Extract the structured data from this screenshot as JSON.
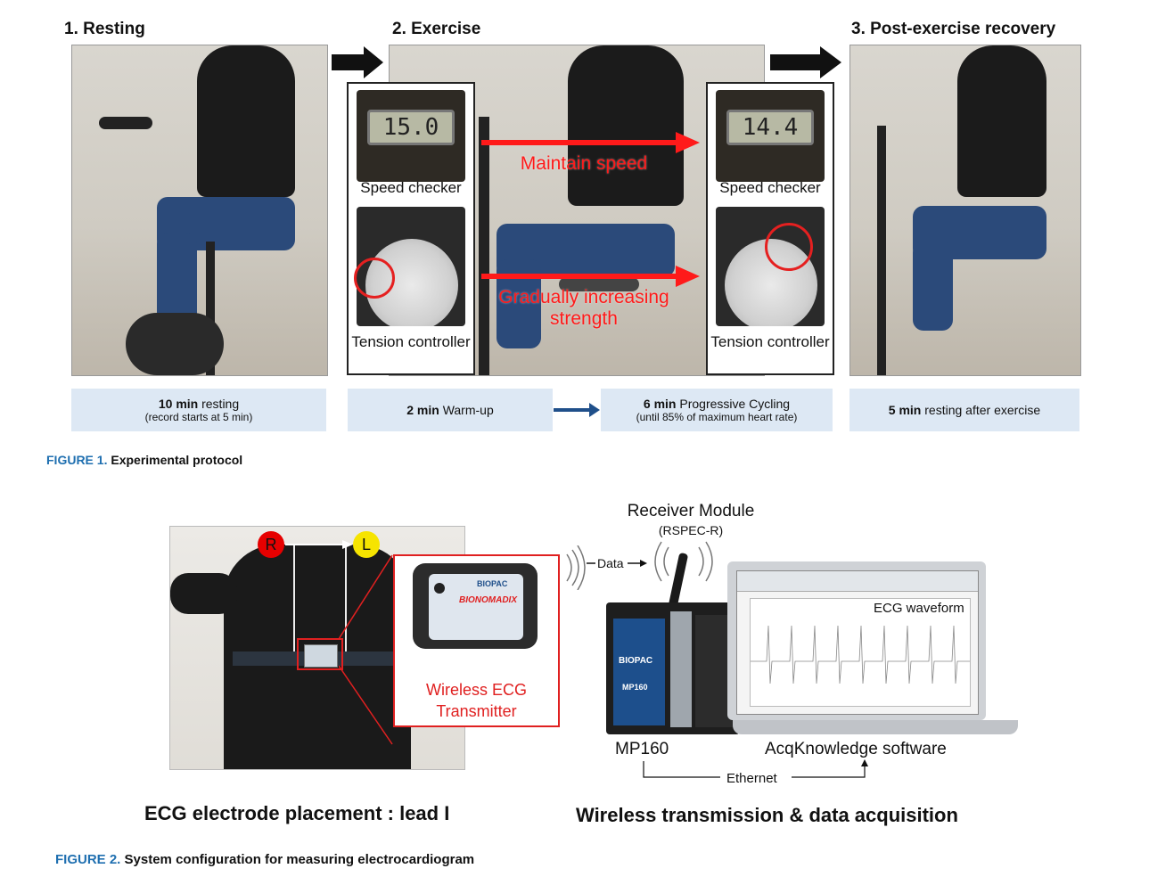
{
  "figure1": {
    "stages": [
      {
        "label": "1. Resting"
      },
      {
        "label": "2. Exercise"
      },
      {
        "label": "3. Post-exercise recovery"
      }
    ],
    "insets": {
      "speed_checker_label": "Speed checker",
      "speed_left_value": "15.0",
      "speed_right_value": "14.4",
      "tension_controller_label": "Tension controller",
      "maintain_speed": "Maintain speed",
      "gradually_increasing": "Gradually increasing strength"
    },
    "steps": [
      {
        "bold": "10 min",
        "rest": " resting",
        "sub": "(record starts at 5 min)"
      },
      {
        "bold": "2 min",
        "rest": " Warm-up",
        "sub": ""
      },
      {
        "bold": "6 min",
        "rest": " Progressive Cycling",
        "sub": "(until 85% of maximum heart rate)"
      },
      {
        "bold": "5 min",
        "rest": " resting after exercise",
        "sub": ""
      }
    ],
    "caption_number": "FIGURE 1.",
    "caption_text": "Experimental protocol"
  },
  "figure2": {
    "electrode_r": "R",
    "electrode_l": "L",
    "transmitter_label": "Wireless ECG Transmitter",
    "device_brand": "BIOPAC",
    "device_model": "BIONOMADIX",
    "receiver_title": "Receiver Module",
    "receiver_sub": "(RSPEC-R)",
    "data_label": "Data",
    "ecg_waveform": "ECG waveform",
    "mp160": "MP160",
    "mp160_badge": "MP160",
    "acq_software": "AcqKnowledge software",
    "ethernet": "Ethernet",
    "left_heading": "ECG electrode placement : lead I",
    "right_heading": "Wireless transmission & data acquisition",
    "caption_number": "FIGURE 2.",
    "caption_text": "System configuration for measuring electrocardiogram"
  },
  "colors": {
    "accent_red": "#ff1a1a",
    "caption_blue": "#1f6fb0",
    "step_fill": "#dde8f4"
  }
}
